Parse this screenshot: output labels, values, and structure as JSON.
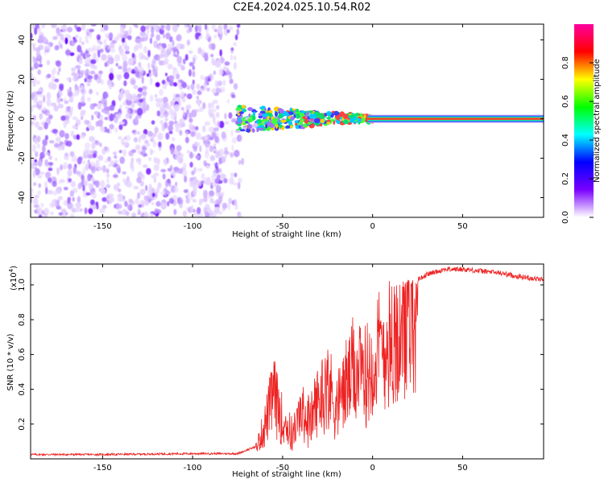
{
  "title": "C2E4.2024.025.10.54.R02",
  "chart_data": [
    {
      "type": "heatmap",
      "title": "C2E4.2024.025.10.54.R02",
      "xlabel": "Height of straight line (km)",
      "ylabel": "Frequency (Hz)",
      "xlim": [
        -190,
        95
      ],
      "ylim": [
        -50,
        48
      ],
      "x_ticks": [
        -150,
        -100,
        -50,
        0,
        50
      ],
      "y_ticks": [
        -40,
        -20,
        0,
        20,
        40
      ],
      "colorbar": {
        "label": "Normalized spectral amplitude",
        "range": [
          0,
          1
        ],
        "ticks": [
          "0.0",
          "0.2",
          "0.4",
          "0.6",
          "0.8"
        ],
        "colors": [
          "#ffffff",
          "#7a00ff",
          "#0000ff",
          "#00ffff",
          "#00ff00",
          "#ffff00",
          "#ff0000",
          "#ff00a0"
        ]
      },
      "description_regions": {
        "noise_region_x": [
          -190,
          -75
        ],
        "signal_spread_x": [
          -75,
          0
        ],
        "signal_narrow_x": [
          0,
          95
        ],
        "signal_center_frequency": 0
      }
    },
    {
      "type": "line",
      "xlabel": "Height of straight line (km)",
      "ylabel": "SNR (10 * v/v)",
      "scale_label": "(x10",
      "scale_exponent": "4",
      "scale_suffix": ")",
      "xlim": [
        -190,
        95
      ],
      "ylim": [
        0,
        1.12
      ],
      "x_ticks": [
        -150,
        -100,
        -50,
        0,
        50
      ],
      "y_ticks": [
        "0.2",
        "0.4",
        "0.6",
        "0.8",
        "1.0"
      ],
      "color": "#ee2222",
      "series": [
        {
          "x": [
            -190,
            -150,
            -100,
            -75,
            -65,
            -60,
            -55,
            -50,
            -45,
            -40,
            -35,
            -30,
            -25,
            -20,
            -15,
            -10,
            -5,
            0,
            5,
            10,
            15,
            20,
            25,
            30,
            40,
            50,
            60,
            70,
            80,
            95
          ],
          "y": [
            0.025,
            0.025,
            0.03,
            0.03,
            0.07,
            0.25,
            0.5,
            0.3,
            0.2,
            0.35,
            0.3,
            0.45,
            0.55,
            0.4,
            0.55,
            0.65,
            0.6,
            0.7,
            0.8,
            0.85,
            0.95,
            1.0,
            1.03,
            1.06,
            1.09,
            1.09,
            1.08,
            1.07,
            1.05,
            1.03
          ]
        }
      ]
    }
  ]
}
